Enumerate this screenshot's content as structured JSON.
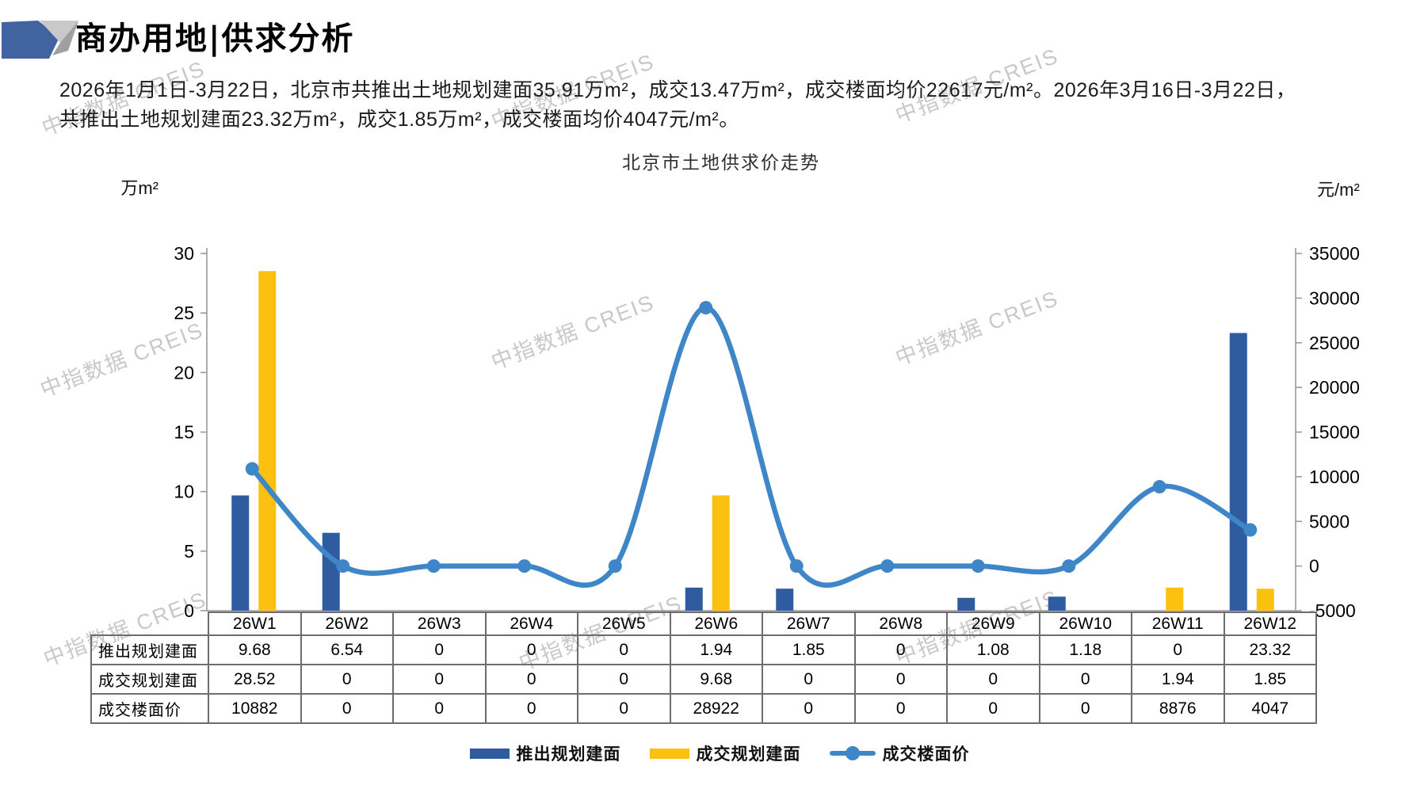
{
  "header": {
    "title": "商办用地|供求分析"
  },
  "summary": {
    "line1": "2026年1月1日-3月22日，北京市共推出土地规划建面35.91万m²，成交13.47万m²，成交楼面均价22617元/m²。2026年3月16日-3月22日，",
    "line2": "共推出土地规划建面23.32万m²，成交1.85万m²，成交楼面均价4047元/m²。"
  },
  "watermark": {
    "text": "中指数据 CREIS"
  },
  "colors": {
    "bar_blue": "#2E5C9E",
    "bar_yellow": "#FCC011",
    "line_blue": "#3F86C8",
    "axis_gray": "#9a9a9a",
    "logo_blue": "#41639F",
    "logo_light_gray": "#C9C9C9",
    "logo_mid_gray": "#9FA0A2"
  },
  "chart_data": {
    "type": "bar",
    "title": "北京市土地供求价走势",
    "categories": [
      "26W1",
      "26W2",
      "26W3",
      "26W4",
      "26W5",
      "26W6",
      "26W7",
      "26W8",
      "26W9",
      "26W10",
      "26W11",
      "26W12"
    ],
    "series": [
      {
        "name": "推出规划建面",
        "type": "bar",
        "axis": "left",
        "color": "#2E5C9E",
        "values": [
          9.68,
          6.54,
          0,
          0,
          0,
          1.94,
          1.85,
          0,
          1.08,
          1.18,
          0,
          23.32
        ]
      },
      {
        "name": "成交规划建面",
        "type": "bar",
        "axis": "left",
        "color": "#FCC011",
        "values": [
          28.52,
          0,
          0,
          0,
          0,
          9.68,
          0,
          0,
          0,
          0,
          1.94,
          1.85
        ]
      },
      {
        "name": "成交楼面价",
        "type": "line",
        "axis": "right",
        "color": "#3F86C8",
        "values": [
          10882,
          0,
          0,
          0,
          0,
          28922,
          0,
          0,
          0,
          0,
          8876,
          4047
        ]
      }
    ],
    "left_axis": {
      "unit": "万m²",
      "min": 0,
      "max": 30,
      "step": 5
    },
    "right_axis": {
      "unit": "元/m²",
      "min": -5000,
      "max": 35000,
      "step": 5000
    },
    "grid": false,
    "legend_position": "bottom"
  },
  "table": {
    "row_labels": [
      "推出规划建面",
      "成交规划建面",
      "成交楼面价"
    ],
    "columns": [
      "26W1",
      "26W2",
      "26W3",
      "26W4",
      "26W5",
      "26W6",
      "26W7",
      "26W8",
      "26W9",
      "26W10",
      "26W11",
      "26W12"
    ],
    "rows": [
      [
        "9.68",
        "6.54",
        "0",
        "0",
        "0",
        "1.94",
        "1.85",
        "0",
        "1.08",
        "1.18",
        "0",
        "23.32"
      ],
      [
        "28.52",
        "0",
        "0",
        "0",
        "0",
        "9.68",
        "0",
        "0",
        "0",
        "0",
        "1.94",
        "1.85"
      ],
      [
        "10882",
        "0",
        "0",
        "0",
        "0",
        "28922",
        "0",
        "0",
        "0",
        "0",
        "8876",
        "4047"
      ]
    ]
  },
  "legend": {
    "items": [
      {
        "label": "推出规划建面",
        "swatch": "bar",
        "color": "#2E5C9E"
      },
      {
        "label": "成交规划建面",
        "swatch": "bar",
        "color": "#FCC011"
      },
      {
        "label": "成交楼面价",
        "swatch": "line",
        "color": "#3F86C8"
      }
    ]
  }
}
